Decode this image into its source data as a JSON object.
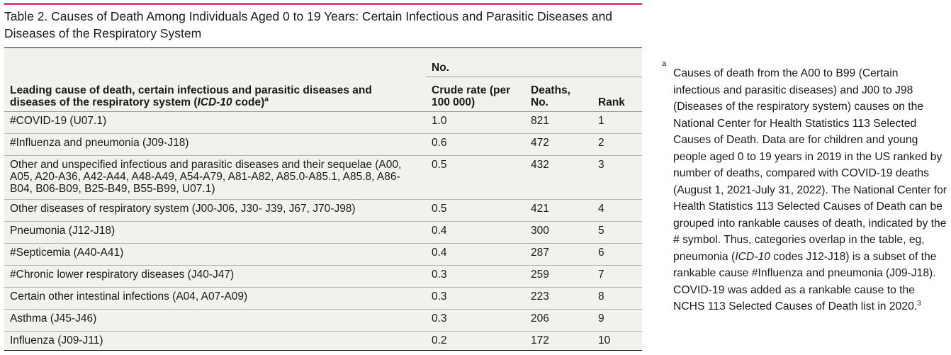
{
  "title": "Table 2. Causes of Death Among Individuals Aged 0 to 19 Years: Certain Infectious and Parasitic Diseases and Diseases of the Respiratory System",
  "table": {
    "group_header": "No.",
    "col_cause_prefix": "Leading cause of death, certain infectious and parasitic diseases and diseases of the respiratory system (",
    "col_cause_italic": "ICD-10",
    "col_cause_suffix": " code)",
    "col_cause_sup": "a",
    "col_rate": "Crude rate (per 100 000)",
    "col_deaths": "Deaths, No.",
    "col_rank": "Rank",
    "rows": [
      {
        "cause": "#COVID-19 (U07.1)",
        "rate": "1.0",
        "deaths": "821",
        "rank": "1"
      },
      {
        "cause": "#Influenza and pneumonia (J09-J18)",
        "rate": "0.6",
        "deaths": "472",
        "rank": "2"
      },
      {
        "cause": "Other and unspecified infectious and parasitic diseases and their sequelae (A00, A05, A20-A36, A42-A44, A48-A49, A54-A79, A81-A82, A85.0-A85.1, A85.8, A86-B04, B06-B09, B25-B49, B55-B99, U07.1)",
        "rate": "0.5",
        "deaths": "432",
        "rank": "3"
      },
      {
        "cause": "Other diseases of respiratory system (J00-J06, J30- J39, J67, J70-J98)",
        "rate": "0.5",
        "deaths": "421",
        "rank": "4"
      },
      {
        "cause": "Pneumonia (J12-J18)",
        "rate": "0.4",
        "deaths": "300",
        "rank": "5"
      },
      {
        "cause": "#Septicemia (A40-A41)",
        "rate": "0.4",
        "deaths": "287",
        "rank": "6"
      },
      {
        "cause": "#Chronic lower respiratory diseases (J40-J47)",
        "rate": "0.3",
        "deaths": "259",
        "rank": "7"
      },
      {
        "cause": "Certain other intestinal infections (A04, A07-A09)",
        "rate": "0.3",
        "deaths": "223",
        "rank": "8"
      },
      {
        "cause": "Asthma (J45-J46)",
        "rate": "0.3",
        "deaths": "206",
        "rank": "9"
      },
      {
        "cause": "Influenza (J09-J11)",
        "rate": "0.2",
        "deaths": "172",
        "rank": "10"
      }
    ]
  },
  "footnote": {
    "marker": "a",
    "part1": "Causes of death from the A00 to B99 (Certain infectious and parasitic diseases) and J00 to J98 (Diseases of the respiratory system) causes on the National Center for Health Statistics 113 Selected Causes of Death. Data are for children and young people aged 0 to 19 years in 2019 in the US ranked by number of deaths, compared with COVID-19 deaths (August 1, 2021-July 31, 2022). The National Center for Health Statistics 113 Selected Causes of Death can be grouped into rankable causes of death, indicated by the # symbol. Thus, categories overlap in the table, eg, pneumonia (",
    "italic": "ICD-10",
    "part2": " codes J12-J18) is a subset of the rankable cause #Influenza and pneumonia (J09-J18). COVID-19 was added as a rankable cause to the NCHS 113 Selected Causes of Death list in 2020.",
    "ref": "3"
  },
  "colors": {
    "accent": "#e0457b",
    "table_bg": "#f2f2ed"
  }
}
